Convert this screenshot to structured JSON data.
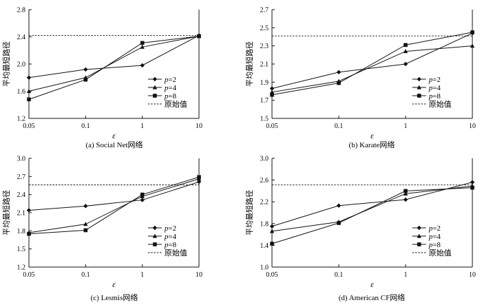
{
  "chart_data": [
    {
      "type": "line",
      "caption": "(a) Social Net网络",
      "xlabel": "ε",
      "ylabel": "平均最短路径",
      "x": [
        "0.05",
        "0.1",
        "1",
        "10"
      ],
      "xscale": "log",
      "yticks": [
        "1.2",
        "1.6",
        "2.0",
        "2.4",
        "2.8"
      ],
      "ylim": [
        1.2,
        2.8
      ],
      "reference": 2.42,
      "series": [
        {
          "name": "p=2",
          "marker": "diamond",
          "values": [
            1.8,
            1.92,
            1.98,
            2.42
          ]
        },
        {
          "name": "p=4",
          "marker": "triangle",
          "values": [
            1.6,
            1.8,
            2.25,
            2.41
          ]
        },
        {
          "name": "p=8",
          "marker": "square",
          "values": [
            1.48,
            1.77,
            2.31,
            2.41
          ]
        }
      ],
      "reference_label": "原始值",
      "legend_position": "bottom-right"
    },
    {
      "type": "line",
      "caption": "(b) Karate网络",
      "xlabel": "ε",
      "ylabel": "平均最短路径",
      "x": [
        "0.05",
        "0.1",
        "1",
        "10"
      ],
      "xscale": "log",
      "yticks": [
        "1.5",
        "1.7",
        "1.9",
        "2.1",
        "2.3",
        "2.5",
        "2.7"
      ],
      "ylim": [
        1.5,
        2.7
      ],
      "reference": 2.41,
      "series": [
        {
          "name": "p=2",
          "marker": "diamond",
          "values": [
            1.83,
            2.01,
            2.1,
            2.44
          ]
        },
        {
          "name": "p=4",
          "marker": "triangle",
          "values": [
            1.79,
            1.91,
            2.24,
            2.3
          ]
        },
        {
          "name": "p=8",
          "marker": "square",
          "values": [
            1.76,
            1.89,
            2.31,
            2.45
          ]
        }
      ],
      "reference_label": "原始值",
      "legend_position": "bottom-right"
    },
    {
      "type": "line",
      "caption": "(c) Lesmis网络",
      "xlabel": "ε",
      "ylabel": "平均最短路径",
      "x": [
        "0.05",
        "0.1",
        "1",
        "10"
      ],
      "xscale": "log",
      "yticks": [
        "1.2",
        "1.5",
        "1.8",
        "2.1",
        "2.4",
        "2.7",
        "3.0"
      ],
      "ylim": [
        1.2,
        3.0
      ],
      "reference": 2.56,
      "series": [
        {
          "name": "p=2",
          "marker": "diamond",
          "values": [
            2.14,
            2.21,
            2.31,
            2.61
          ]
        },
        {
          "name": "p=4",
          "marker": "triangle",
          "values": [
            1.77,
            1.91,
            2.37,
            2.66
          ]
        },
        {
          "name": "p=8",
          "marker": "square",
          "values": [
            1.75,
            1.81,
            2.4,
            2.69
          ]
        }
      ],
      "reference_label": "原始值",
      "legend_position": "bottom-right"
    },
    {
      "type": "line",
      "caption": "(d) American CF网络",
      "xlabel": "ε",
      "ylabel": "平均最短路径",
      "x": [
        "0.05",
        "0.1",
        "1",
        "10"
      ],
      "xscale": "log",
      "yticks": [
        "1.0",
        "1.4",
        "1.8",
        "2.2",
        "2.6",
        "3.0"
      ],
      "ylim": [
        1.0,
        3.0
      ],
      "reference": 2.51,
      "series": [
        {
          "name": "p=2",
          "marker": "diamond",
          "values": [
            1.75,
            2.13,
            2.24,
            2.56
          ]
        },
        {
          "name": "p=4",
          "marker": "triangle",
          "values": [
            1.66,
            1.83,
            2.35,
            2.49
          ]
        },
        {
          "name": "p=8",
          "marker": "square",
          "values": [
            1.43,
            1.81,
            2.4,
            2.46
          ]
        }
      ],
      "reference_label": "原始值",
      "legend_position": "bottom-right"
    }
  ]
}
